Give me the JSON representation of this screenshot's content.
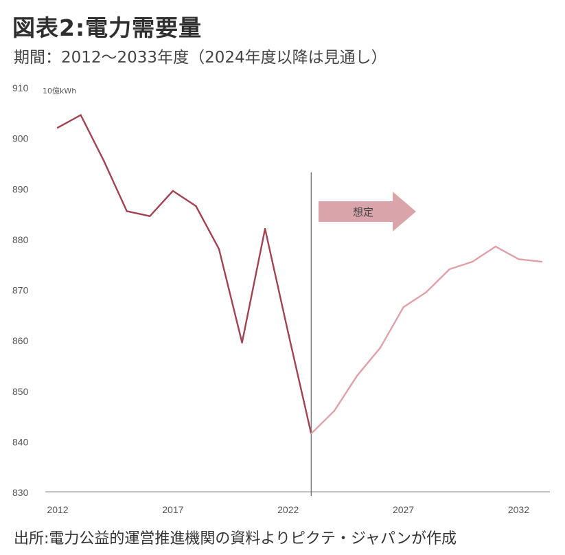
{
  "title": "図表2:電力需要量",
  "subtitle": "期間：2012〜2033年度（2024年度以降は見通し）",
  "source": "出所:電力公益的運営推進機関の資料よりピクテ・ジャパンが作成",
  "colors": {
    "actual": "#a0424f",
    "forecast": "#e0a0a8",
    "arrow": "#d9a5ab",
    "divider": "#666666"
  },
  "chart_data": {
    "type": "line",
    "unit_label": "10億kWh",
    "annotation": "想定",
    "x": [
      2012,
      2013,
      2014,
      2015,
      2016,
      2017,
      2018,
      2019,
      2020,
      2021,
      2022,
      2023,
      2024,
      2025,
      2026,
      2027,
      2028,
      2029,
      2030,
      2031,
      2032,
      2033
    ],
    "xticks": [
      "2012",
      "2017",
      "2022",
      "2027",
      "2032"
    ],
    "yticks": [
      "830",
      "840",
      "850",
      "860",
      "870",
      "880",
      "890",
      "900",
      "910"
    ],
    "ylim": [
      830,
      910
    ],
    "divider_x": 2023,
    "series": [
      {
        "values": [
          902,
          904.5,
          895.5,
          885.5,
          884.5,
          889.5,
          886.5,
          878,
          859.5,
          882,
          861.5,
          841.5,
          null,
          null,
          null,
          null,
          null,
          null,
          null,
          null,
          null,
          null
        ]
      },
      {
        "values": [
          null,
          null,
          null,
          null,
          null,
          null,
          null,
          null,
          null,
          null,
          null,
          841.5,
          846,
          853,
          858.5,
          866.5,
          869.5,
          874,
          875.5,
          878.5,
          876,
          875.5
        ]
      }
    ]
  }
}
